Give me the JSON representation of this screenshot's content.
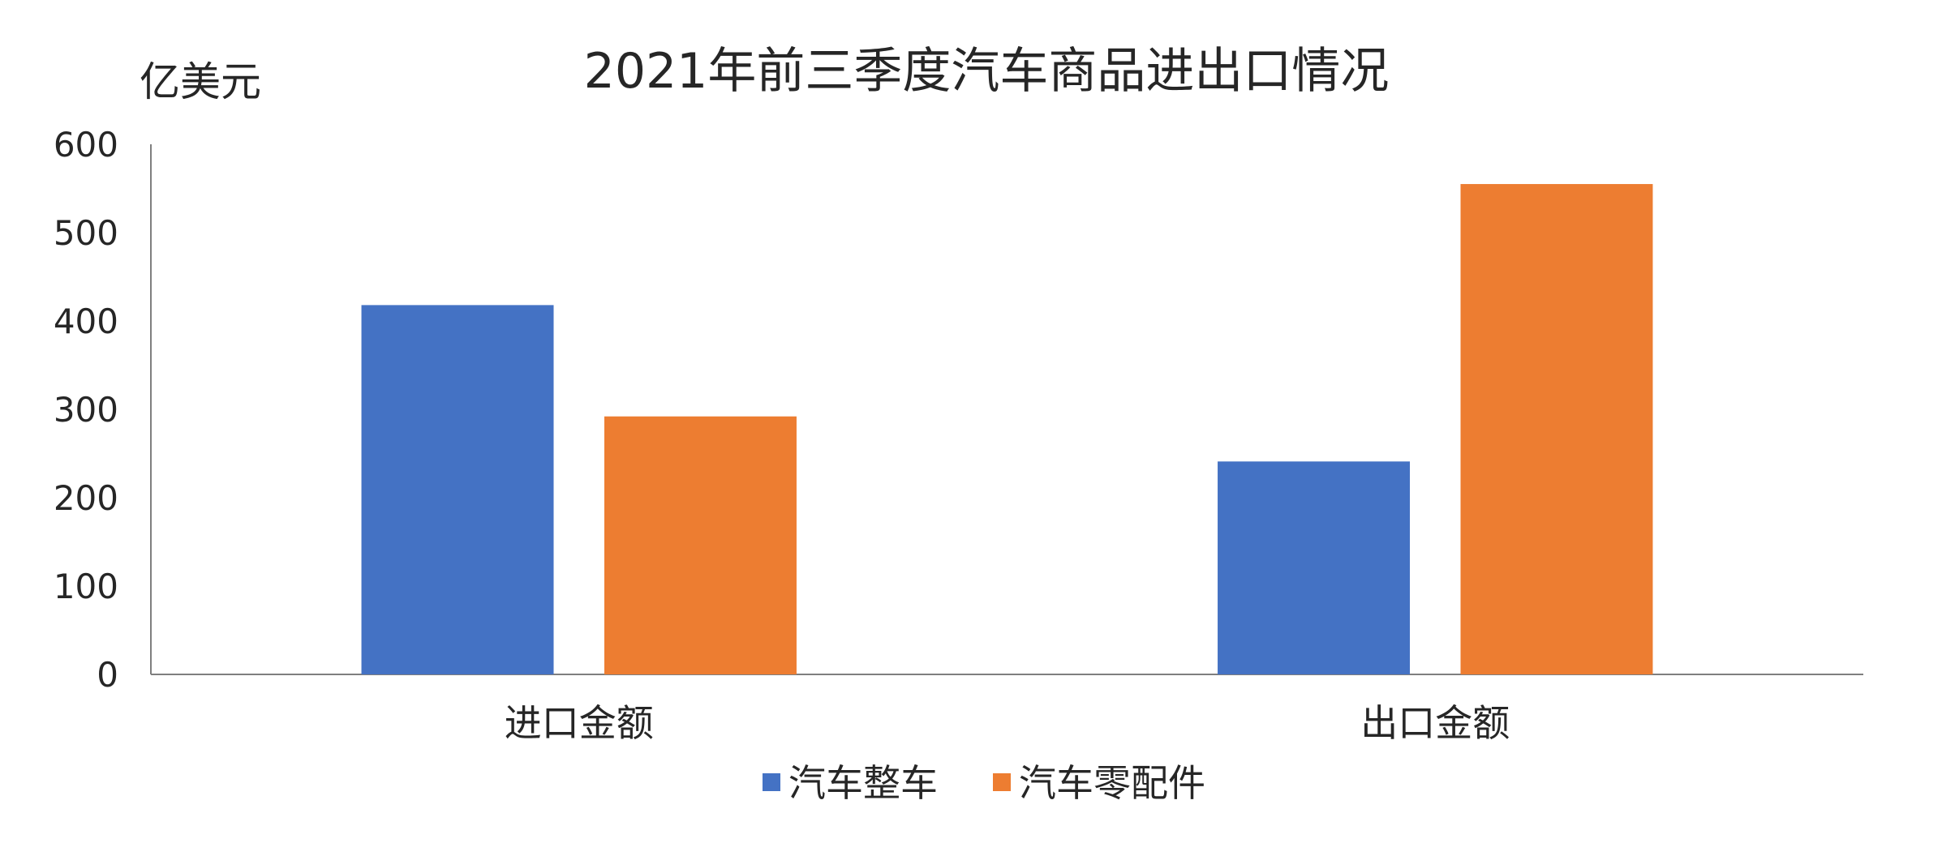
{
  "chart_data": {
    "type": "bar",
    "title": "2021年前三季度汽车商品进出口情况",
    "ylabel": "亿美元",
    "xlabel": "",
    "categories": [
      "进口金额",
      "出口金额"
    ],
    "series": [
      {
        "name": "汽车整车",
        "values": [
          418,
          241
        ],
        "color": "#4472C4"
      },
      {
        "name": "汽车零配件",
        "values": [
          292,
          555
        ],
        "color": "#ED7D31"
      }
    ],
    "ylim": [
      0,
      600
    ],
    "yticks": [
      "0",
      "100",
      "200",
      "300",
      "400",
      "500",
      "600"
    ],
    "grid": false,
    "legend": "bottom"
  }
}
